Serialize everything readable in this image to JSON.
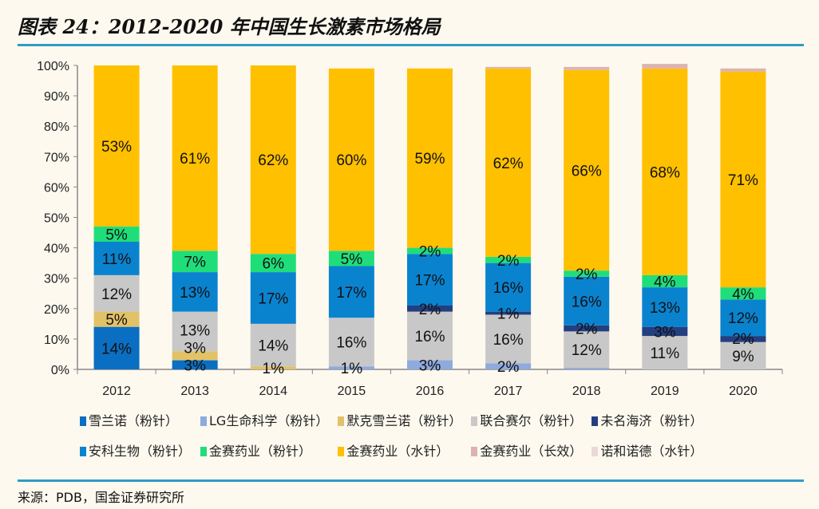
{
  "title": "图表 24：2012-2020 年中国生长激素市场格局",
  "source": "来源：PDB，国金证券研究所",
  "chart_data": {
    "type": "bar",
    "stacked": true,
    "percent": true,
    "categories": [
      "2012",
      "2013",
      "2014",
      "2015",
      "2016",
      "2017",
      "2018",
      "2019",
      "2020"
    ],
    "ylim": [
      0,
      100
    ],
    "yticks": [
      "0%",
      "10%",
      "20%",
      "30%",
      "40%",
      "50%",
      "60%",
      "70%",
      "80%",
      "90%",
      "100%"
    ],
    "grid": false,
    "legend_position": "bottom",
    "series": [
      {
        "name": "雪兰诺（粉针）",
        "color": "#0a6fc2",
        "values": [
          14,
          3,
          0,
          0,
          0,
          0,
          0,
          0,
          0
        ],
        "labels": true
      },
      {
        "name": "LG生命科学（粉针）",
        "color": "#8eaadf",
        "values": [
          0,
          0,
          0,
          1,
          3,
          2,
          0.5,
          0,
          0
        ],
        "labels": true
      },
      {
        "name": "默克雪兰诺（粉针）",
        "color": "#e2c268",
        "values": [
          5,
          3,
          1,
          0,
          0,
          0,
          0,
          0,
          0
        ],
        "labels": true
      },
      {
        "name": "联合赛尔（粉针）",
        "color": "#c8c8c8",
        "values": [
          12,
          13,
          14,
          16,
          16,
          16,
          12,
          11,
          9
        ],
        "labels": true
      },
      {
        "name": "未名海济（粉针）",
        "color": "#233f80",
        "values": [
          0,
          0,
          0,
          0,
          2,
          1,
          2,
          3,
          2
        ],
        "labels": true
      },
      {
        "name": "安科生物（粉针）",
        "color": "#0a83cf",
        "values": [
          11,
          13,
          17,
          17,
          17,
          16,
          16,
          13,
          12
        ],
        "labels": true
      },
      {
        "name": "金赛药业（粉针）",
        "color": "#1fde7a",
        "values": [
          5,
          7,
          6,
          5,
          2,
          2,
          2,
          4,
          4
        ],
        "labels": true
      },
      {
        "name": "金赛药业（水针）",
        "color": "#ffc000",
        "values": [
          53,
          61,
          62,
          60,
          59,
          62,
          66,
          68,
          71
        ],
        "labels": true
      },
      {
        "name": "金赛药业（长效）",
        "color": "#dcb3b3",
        "values": [
          0,
          0,
          0,
          0,
          0,
          0.5,
          1,
          1.5,
          1
        ],
        "labels": false
      },
      {
        "name": "诺和诺德（水针）",
        "color": "#ecd8d8",
        "values": [
          0,
          0,
          0,
          0,
          0,
          0,
          0,
          0,
          0
        ],
        "labels": false
      }
    ]
  }
}
